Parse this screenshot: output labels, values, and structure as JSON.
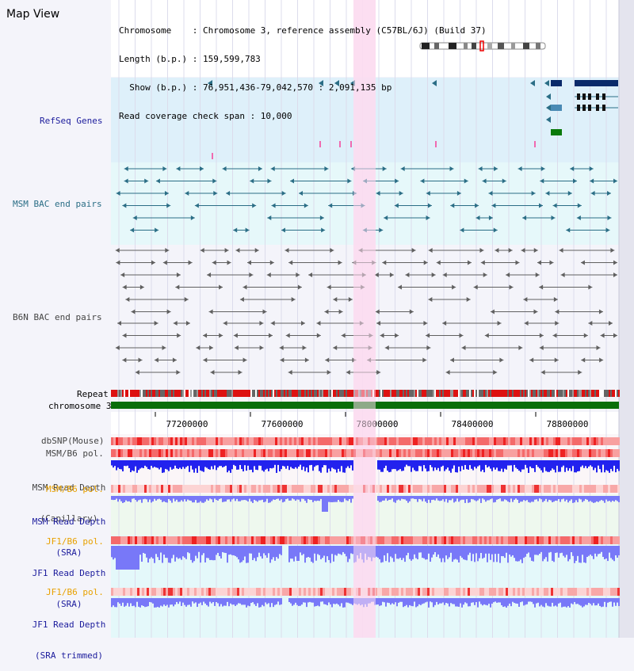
{
  "title": "Map View",
  "info": {
    "chromosome": "Chromosome    : Chromosome 3, reference assembly (C57BL/6J) (Build 37)",
    "length": "Length (b.p.) : 159,599,783",
    "show": "  Show (b.p.) : 76,951,436-79,042,570 : 2,091,135 bp",
    "read_span": "Read coverage check span : 10,000"
  },
  "tracks": {
    "refseq": "RefSeq Genes",
    "msm_bac": "MSM BAC end pairs",
    "b6n_bac": "B6N BAC end pairs",
    "repeat": "Repeat",
    "chromosome": "chromosome 3",
    "dbsnp": "dbSNP(Mouse)",
    "msm_b6_pol": "MSM/B6 pol.",
    "msm_depth_cap_1": "MSM Read Depth",
    "msm_depth_cap_2": "(Capillary)",
    "msm_b6_pol2": "MSM/B6 pol.",
    "msm_depth_sra_1": "MSM Read Depth",
    "msm_depth_sra_2": "(SRA)",
    "jf1_b6_pol": "JF1/B6 pol.",
    "jf1_depth_sra_1": "JF1 Read Depth",
    "jf1_depth_sra_2": "(SRA)",
    "jf1_b6_pol2": "JF1/B6 pol.",
    "jf1_depth_trim_1": "JF1 Read Depth",
    "jf1_depth_trim_2": "(SRA trimmed)"
  },
  "axis_ticks": [
    "77200000",
    "77600000",
    "78000000",
    "78400000",
    "78800000"
  ],
  "colors": {
    "refseq_bg": "#def0fa",
    "msm_bac_bg": "#e6f8fa",
    "b6n_bac_bg": "#f4f4fa",
    "chromosome_bar": "#0a6e0a",
    "highlight": "#fcdcf0",
    "polymorphism": "#ff4444",
    "depth_blue": "#2222ee",
    "depth_light_blue": "#7878f8"
  }
}
